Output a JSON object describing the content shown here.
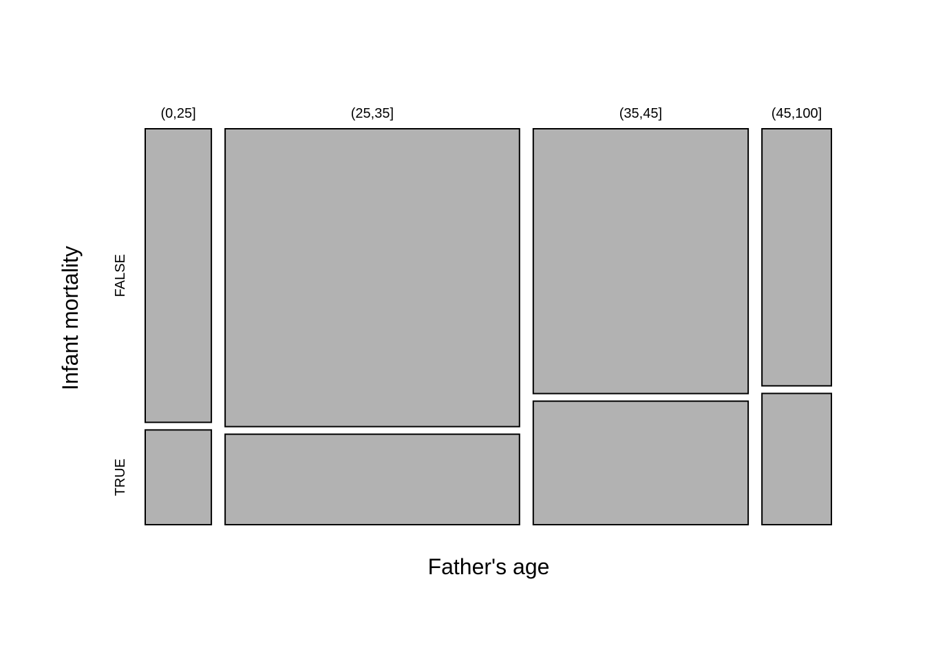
{
  "chart_data": {
    "type": "mosaic",
    "xlabel": "Father's age",
    "ylabel": "Infant mortality",
    "x_categories": [
      "(0,25]",
      "(25,35]",
      "(35,45]",
      "(45,100]"
    ],
    "y_categories": [
      "FALSE",
      "TRUE"
    ],
    "column_shares": [
      0.1,
      0.445,
      0.325,
      0.105
    ],
    "row_shares": [
      [
        0.756,
        0.244
      ],
      [
        0.767,
        0.233
      ],
      [
        0.682,
        0.318
      ],
      [
        0.662,
        0.338
      ]
    ],
    "fill_color": "#b2b2b2",
    "stroke_color": "#000000"
  }
}
